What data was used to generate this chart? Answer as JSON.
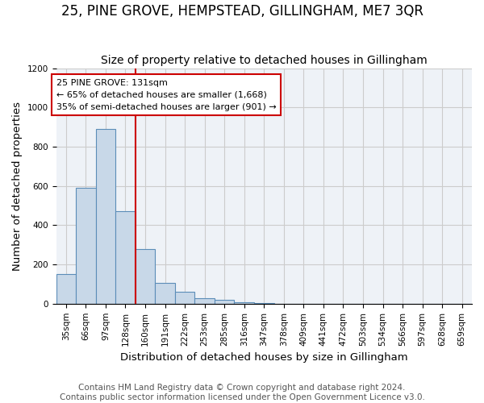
{
  "title": "25, PINE GROVE, HEMPSTEAD, GILLINGHAM, ME7 3QR",
  "subtitle": "Size of property relative to detached houses in Gillingham",
  "xlabel": "Distribution of detached houses by size in Gillingham",
  "ylabel": "Number of detached properties",
  "footer_line1": "Contains HM Land Registry data © Crown copyright and database right 2024.",
  "footer_line2": "Contains public sector information licensed under the Open Government Licence v3.0.",
  "annotation_line1": "25 PINE GROVE: 131sqm",
  "annotation_line2": "← 65% of detached houses are smaller (1,668)",
  "annotation_line3": "35% of semi-detached houses are larger (901) →",
  "bar_values": [
    150,
    590,
    890,
    470,
    280,
    105,
    60,
    30,
    20,
    8,
    5,
    0,
    0,
    0,
    0,
    0,
    0,
    0,
    0,
    0,
    0
  ],
  "categories": [
    "35sqm",
    "66sqm",
    "97sqm",
    "128sqm",
    "160sqm",
    "191sqm",
    "222sqm",
    "253sqm",
    "285sqm",
    "316sqm",
    "347sqm",
    "378sqm",
    "409sqm",
    "441sqm",
    "472sqm",
    "503sqm",
    "534sqm",
    "566sqm",
    "597sqm",
    "628sqm",
    "659sqm"
  ],
  "bar_color": "#c8d8e8",
  "bar_edge_color": "#5b8db8",
  "ylim": [
    0,
    1200
  ],
  "yticks": [
    0,
    200,
    400,
    600,
    800,
    1000,
    1200
  ],
  "annotation_box_color": "#ffffff",
  "annotation_box_edge": "#cc0000",
  "red_line_color": "#cc0000",
  "grid_color": "#cccccc",
  "title_fontsize": 12,
  "subtitle_fontsize": 10,
  "axis_label_fontsize": 9.5,
  "tick_fontsize": 7.5,
  "footer_fontsize": 7.5
}
